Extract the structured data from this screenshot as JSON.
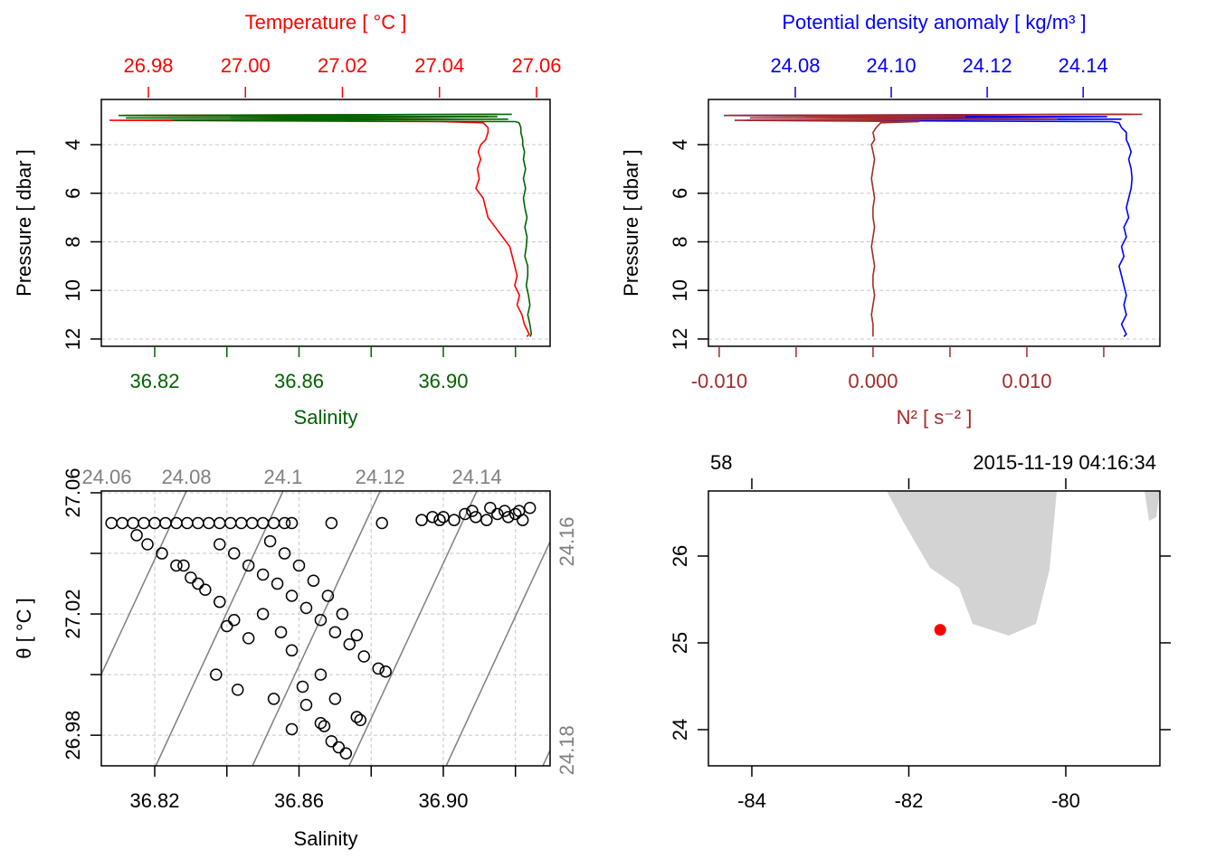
{
  "chart_data": [
    {
      "type": "profile",
      "xlabel": "Salinity",
      "x2label": "Temperature [ °C ]",
      "ylabel": "Pressure [ dbar ]",
      "ylim": [
        12.3,
        2.14
      ],
      "yticks": [
        4,
        6,
        8,
        10,
        12
      ],
      "grid": true,
      "xlim": [
        36.8052,
        36.9296
      ],
      "xticks": [
        36.82,
        36.86,
        {
          "value": 36.9,
          "label": "36.90"
        }
      ],
      "xticks_minor": [
        36.84,
        36.88,
        36.92
      ],
      "x2lim": [
        26.9703,
        27.0628
      ],
      "x2ticks": [
        26.98,
        {
          "value": 27.0,
          "label": "27.00"
        },
        27.02,
        27.04,
        27.06
      ],
      "series": [
        {
          "color": "#ff0000",
          "axis": "x2",
          "y": [
            2.75,
            2.8,
            2.85,
            2.9,
            2.95,
            3.0,
            3.05,
            3.1,
            3.3,
            3.5,
            3.8,
            4.0,
            4.3,
            4.6,
            5.0,
            5.4,
            5.8,
            6.2,
            6.6,
            7.0,
            7.4,
            7.8,
            8.2,
            8.6,
            9.0,
            9.4,
            9.8,
            10.2,
            10.6,
            11.0,
            11.4,
            11.8,
            11.9
          ],
          "x": [
            27.052,
            26.975,
            27.05,
            26.99,
            27.045,
            26.972,
            27.04,
            27.049,
            27.05,
            27.05,
            27.0495,
            27.0485,
            27.048,
            27.0485,
            27.0478,
            27.0482,
            27.0475,
            27.049,
            27.0495,
            27.05,
            27.0515,
            27.053,
            27.0545,
            27.055,
            27.0555,
            27.056,
            27.0555,
            27.0565,
            27.056,
            27.057,
            27.0575,
            27.0585,
            27.058
          ]
        },
        {
          "color": "#006400",
          "axis": "x",
          "y": [
            2.75,
            2.8,
            2.85,
            2.9,
            2.95,
            3.0,
            3.05,
            3.1,
            3.3,
            3.5,
            3.8,
            4.0,
            4.3,
            4.6,
            5.0,
            5.4,
            5.8,
            6.2,
            6.6,
            7.0,
            7.4,
            7.8,
            8.2,
            8.6,
            9.0,
            9.4,
            9.8,
            10.2,
            10.6,
            11.0,
            11.4,
            11.8,
            11.9
          ],
          "x": [
            36.919,
            36.81,
            36.915,
            36.812,
            36.918,
            36.825,
            36.92,
            36.921,
            36.9215,
            36.9215,
            36.922,
            36.922,
            36.9225,
            36.9222,
            36.9228,
            36.9222,
            36.9228,
            36.9222,
            36.9226,
            36.9232,
            36.9226,
            36.9232,
            36.923,
            36.9226,
            36.9234,
            36.9234,
            36.923,
            36.9236,
            36.924,
            36.9234,
            36.924,
            36.9244,
            36.924
          ]
        }
      ]
    },
    {
      "type": "profile",
      "xlabel": "N² [ s⁻² ]",
      "x2label": "Potential density anomaly [ kg/m³ ]",
      "ylabel": "Pressure [ dbar ]",
      "ylim": [
        12.3,
        2.14
      ],
      "yticks": [
        4,
        6,
        8,
        10,
        12
      ],
      "grid": true,
      "xlim": [
        -0.0107,
        0.01865
      ],
      "xticks": [
        {
          "value": -0.01,
          "label": "-0.010"
        },
        {
          "value": 0,
          "label": "0.000"
        },
        {
          "value": 0.01,
          "label": "0.010"
        }
      ],
      "xticks_minor": [
        -0.005,
        0.005,
        0.015
      ],
      "x2lim": [
        24.0619,
        24.156
      ],
      "x2ticks": [
        24.08,
        {
          "value": 24.1,
          "label": "24.10"
        },
        24.12,
        24.14
      ],
      "series": [
        {
          "color": "#0000ff",
          "axis": "x2",
          "y": [
            2.75,
            2.8,
            2.85,
            2.9,
            2.95,
            3.0,
            3.05,
            3.1,
            3.3,
            3.5,
            3.8,
            4.0,
            4.3,
            4.6,
            5.0,
            5.4,
            5.8,
            6.2,
            6.6,
            7.0,
            7.4,
            7.8,
            8.2,
            8.6,
            9.0,
            9.4,
            9.8,
            10.2,
            10.6,
            11.0,
            11.4,
            11.8,
            11.9
          ],
          "x": [
            24.15,
            24.066,
            24.145,
            24.08,
            24.148,
            24.07,
            24.146,
            24.1475,
            24.148,
            24.149,
            24.149,
            24.1495,
            24.15,
            24.1495,
            24.15,
            24.1502,
            24.15,
            24.1495,
            24.149,
            24.1495,
            24.1485,
            24.149,
            24.148,
            24.1485,
            24.1475,
            24.148,
            24.1485,
            24.149,
            24.1485,
            24.149,
            24.148,
            24.149,
            24.1485
          ]
        },
        {
          "color": "#a52a2a",
          "axis": "x",
          "y": [
            2.75,
            2.8,
            2.85,
            2.9,
            2.95,
            3.0,
            3.05,
            3.1,
            3.3,
            3.5,
            3.8,
            4.0,
            4.3,
            4.6,
            5.0,
            5.4,
            5.8,
            6.2,
            6.6,
            7.0,
            7.4,
            7.8,
            8.2,
            8.6,
            9.0,
            9.4,
            9.8,
            10.2,
            10.6,
            11.0,
            11.4,
            11.8,
            11.9
          ],
          "x": [
            0.0175,
            -0.0097,
            0.006,
            -0.008,
            0.012,
            -0.009,
            0.003,
            0.0005,
            0.0002,
            0,
            0.0001,
            -0.0001,
            0,
            0.0001,
            0,
            -0.0001,
            0,
            0.0001,
            0,
            0,
            0.0001,
            0,
            -0.0001,
            0,
            0.0001,
            0,
            0,
            0.0001,
            0,
            -0.0001,
            0,
            0,
            0
          ]
        }
      ]
    },
    {
      "type": "ts",
      "xlabel": "Salinity",
      "ylabel": "θ [ °C ]",
      "grid": true,
      "xlim": [
        36.8052,
        36.9296
      ],
      "xticks": [
        36.82,
        36.86,
        {
          "value": 36.9,
          "label": "36.90"
        }
      ],
      "xticks_minor": [
        36.84,
        36.88,
        36.92
      ],
      "ylim": [
        26.9699,
        27.0606
      ],
      "yticks": [
        26.98,
        27.02,
        27.06
      ],
      "yticks_minor": [
        27.0,
        27.04
      ],
      "isopycnal_color": "#808080",
      "isopycnals": [
        {
          "level": 24.06,
          "S": [
            36.7666,
            36.8019
          ],
          "T": [
            26.9699,
            27.0606
          ]
        },
        {
          "level": 24.08,
          "S": [
            36.7934,
            36.8288
          ],
          "T": [
            26.9699,
            27.0606
          ]
        },
        {
          "level": 24.1,
          "S": [
            36.8203,
            36.8556
          ],
          "T": [
            26.9699,
            27.0606
          ]
        },
        {
          "level": 24.12,
          "S": [
            36.8471,
            36.8825
          ],
          "T": [
            26.9699,
            27.0606
          ]
        },
        {
          "level": 24.14,
          "S": [
            36.8739,
            36.9093
          ],
          "T": [
            26.9699,
            27.0606
          ]
        },
        {
          "level": 24.16,
          "S": [
            36.9008,
            36.9361
          ],
          "T": [
            26.9699,
            27.0606
          ]
        },
        {
          "level": 24.18,
          "S": [
            36.9276,
            36.963
          ],
          "T": [
            26.9699,
            27.0606
          ]
        }
      ],
      "x": [
        36.808,
        36.811,
        36.814,
        36.817,
        36.82,
        36.823,
        36.826,
        36.829,
        36.832,
        36.835,
        36.838,
        36.841,
        36.844,
        36.847,
        36.85,
        36.853,
        36.856,
        36.858,
        36.869,
        36.883,
        36.894,
        36.897,
        36.9,
        36.903,
        36.906,
        36.909,
        36.912,
        36.915,
        36.918,
        36.921,
        36.924,
        36.922,
        36.908,
        36.913,
        36.899,
        36.917,
        36.92,
        36.815,
        36.818,
        36.822,
        36.826,
        36.83,
        36.834,
        36.838,
        36.842,
        36.846,
        36.837,
        36.843,
        36.853,
        36.838,
        36.842,
        36.846,
        36.85,
        36.854,
        36.858,
        36.862,
        36.866,
        36.87,
        36.874,
        36.878,
        36.882,
        36.884,
        36.852,
        36.856,
        36.86,
        36.864,
        36.868,
        36.872,
        36.876,
        36.828,
        36.832,
        36.84,
        36.85,
        36.855,
        36.858,
        36.862,
        36.866,
        36.869,
        36.871,
        36.873,
        36.876,
        36.877,
        36.867,
        36.87,
        36.858,
        36.861,
        36.866
      ],
      "y": [
        27.05,
        27.05,
        27.05,
        27.05,
        27.05,
        27.05,
        27.05,
        27.05,
        27.05,
        27.05,
        27.05,
        27.05,
        27.05,
        27.05,
        27.05,
        27.05,
        27.05,
        27.05,
        27.05,
        27.05,
        27.051,
        27.052,
        27.052,
        27.051,
        27.053,
        27.052,
        27.051,
        27.053,
        27.052,
        27.054,
        27.055,
        27.051,
        27.054,
        27.055,
        27.051,
        27.054,
        27.053,
        27.046,
        27.043,
        27.04,
        27.036,
        27.032,
        27.028,
        27.024,
        27.018,
        27.012,
        27.0,
        26.995,
        26.992,
        27.043,
        27.04,
        27.036,
        27.033,
        27.03,
        27.026,
        27.022,
        27.018,
        27.014,
        27.01,
        27.006,
        27.002,
        27.001,
        27.044,
        27.04,
        27.036,
        27.031,
        27.026,
        27.02,
        27.013,
        27.036,
        27.03,
        27.016,
        27.02,
        27.014,
        27.008,
        26.99,
        26.984,
        26.978,
        26.976,
        26.974,
        26.986,
        26.985,
        26.983,
        26.992,
        26.982,
        26.996,
        27.0
      ]
    },
    {
      "type": "map",
      "station": "58",
      "time": "2015-11-19 04:16:34",
      "xlim": [
        -84.553,
        -78.801
      ],
      "xticks": [
        -84,
        -82,
        -80
      ],
      "ylim": [
        23.583,
        26.75
      ],
      "yticks": [
        24,
        25,
        26
      ],
      "land_color": "#d3d3d3",
      "land": [
        {
          "lon": [
            -82.282,
            -82.052,
            -81.729,
            -81.36,
            -81.187,
            -80.726,
            -80.38,
            -80.207,
            -80.115
          ],
          "lat": [
            26.75,
            26.365,
            25.865,
            25.635,
            25.219,
            25.083,
            25.219,
            25.844,
            26.75
          ]
        },
        {
          "lon": [
            -78.997,
            -78.939,
            -78.847,
            -78.801
          ],
          "lat": [
            26.75,
            26.406,
            26.448,
            26.75
          ]
        }
      ],
      "station_color": "#ff0000",
      "lon": -81.6,
      "lat": 25.15
    }
  ]
}
